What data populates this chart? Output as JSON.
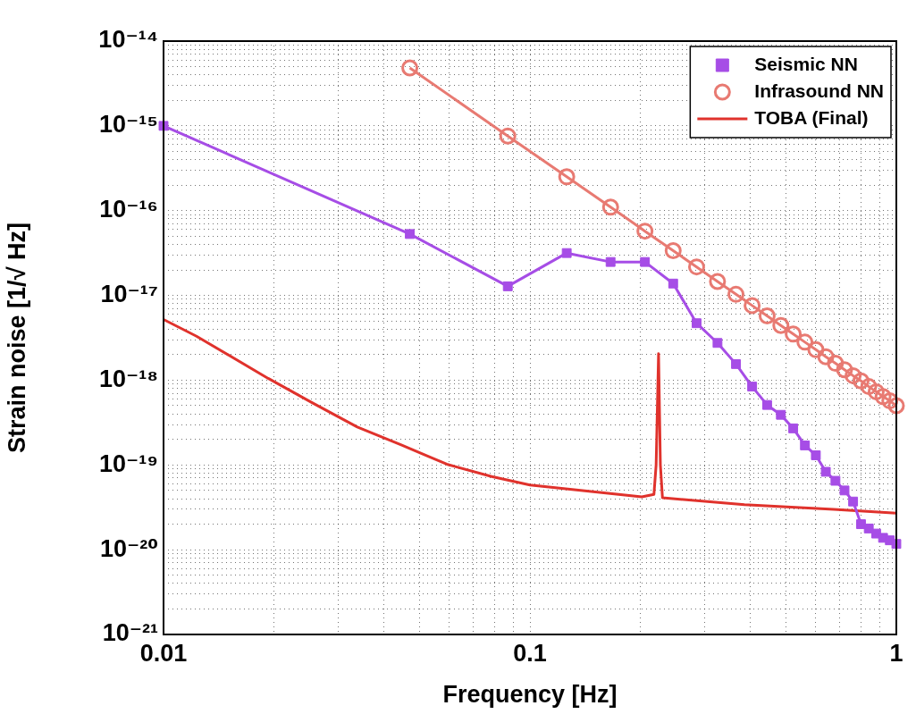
{
  "chart_data": {
    "type": "line",
    "xlabel": "Frequency [Hz]",
    "ylabel": "Strain noise [1/√ Hz]",
    "log": "xy",
    "grid": true,
    "legend": "top right",
    "xlim": [
      0.01,
      1
    ],
    "ylim": [
      1e-21,
      1e-14
    ],
    "xticks": [
      0.01,
      {
        "value": 0.02,
        "label": null
      },
      {
        "value": 0.03,
        "label": null
      },
      {
        "value": 0.04,
        "label": null
      },
      {
        "value": 0.05,
        "label": null
      },
      {
        "value": 0.06,
        "label": null
      },
      {
        "value": 0.07,
        "label": null
      },
      {
        "value": 0.08,
        "label": null
      },
      {
        "value": 0.09,
        "label": null
      },
      0.1,
      {
        "value": 0.2,
        "label": null
      },
      {
        "value": 0.3,
        "label": null
      },
      {
        "value": 0.4,
        "label": null
      },
      {
        "value": 0.5,
        "label": null
      },
      {
        "value": 0.6,
        "label": null
      },
      {
        "value": 0.7,
        "label": null
      },
      {
        "value": 0.8,
        "label": null
      },
      {
        "value": 0.9,
        "label": null
      },
      1
    ],
    "yticks": [
      {
        "value": 1e-21,
        "label": "10⁻²¹"
      },
      {
        "value": 2e-21,
        "label": null
      },
      {
        "value": 3e-21,
        "label": null
      },
      {
        "value": 4e-21,
        "label": null
      },
      {
        "value": 5e-21,
        "label": null
      },
      {
        "value": 6e-21,
        "label": null
      },
      {
        "value": 7e-21,
        "label": null
      },
      {
        "value": 8e-21,
        "label": null
      },
      {
        "value": 9e-21,
        "label": null
      },
      {
        "value": 1e-20,
        "label": "10⁻²⁰"
      },
      {
        "value": 2e-20,
        "label": null
      },
      {
        "value": 3e-20,
        "label": null
      },
      {
        "value": 4e-20,
        "label": null
      },
      {
        "value": 5e-20,
        "label": null
      },
      {
        "value": 6e-20,
        "label": null
      },
      {
        "value": 7e-20,
        "label": null
      },
      {
        "value": 8e-20,
        "label": null
      },
      {
        "value": 9e-20,
        "label": null
      },
      {
        "value": 1e-19,
        "label": "10⁻¹⁹"
      },
      {
        "value": 2e-19,
        "label": null
      },
      {
        "value": 3e-19,
        "label": null
      },
      {
        "value": 4e-19,
        "label": null
      },
      {
        "value": 5e-19,
        "label": null
      },
      {
        "value": 6e-19,
        "label": null
      },
      {
        "value": 7e-19,
        "label": null
      },
      {
        "value": 8e-19,
        "label": null
      },
      {
        "value": 9e-19,
        "label": null
      },
      {
        "value": 1e-18,
        "label": "10⁻¹⁸"
      },
      {
        "value": 2e-18,
        "label": null
      },
      {
        "value": 3e-18,
        "label": null
      },
      {
        "value": 4e-18,
        "label": null
      },
      {
        "value": 5e-18,
        "label": null
      },
      {
        "value": 6e-18,
        "label": null
      },
      {
        "value": 7e-18,
        "label": null
      },
      {
        "value": 8e-18,
        "label": null
      },
      {
        "value": 9e-18,
        "label": null
      },
      {
        "value": 1e-17,
        "label": "10⁻¹⁷"
      },
      {
        "value": 2e-17,
        "label": null
      },
      {
        "value": 3e-17,
        "label": null
      },
      {
        "value": 4e-17,
        "label": null
      },
      {
        "value": 5e-17,
        "label": null
      },
      {
        "value": 6e-17,
        "label": null
      },
      {
        "value": 7e-17,
        "label": null
      },
      {
        "value": 8e-17,
        "label": null
      },
      {
        "value": 9e-17,
        "label": null
      },
      {
        "value": 1e-16,
        "label": "10⁻¹⁶"
      },
      {
        "value": 2e-16,
        "label": null
      },
      {
        "value": 3e-16,
        "label": null
      },
      {
        "value": 4e-16,
        "label": null
      },
      {
        "value": 5e-16,
        "label": null
      },
      {
        "value": 6e-16,
        "label": null
      },
      {
        "value": 7e-16,
        "label": null
      },
      {
        "value": 8e-16,
        "label": null
      },
      {
        "value": 9e-16,
        "label": null
      },
      {
        "value": 1e-15,
        "label": "10⁻¹⁵"
      },
      {
        "value": 2e-15,
        "label": null
      },
      {
        "value": 3e-15,
        "label": null
      },
      {
        "value": 4e-15,
        "label": null
      },
      {
        "value": 5e-15,
        "label": null
      },
      {
        "value": 6e-15,
        "label": null
      },
      {
        "value": 7e-15,
        "label": null
      },
      {
        "value": 8e-15,
        "label": null
      },
      {
        "value": 9e-15,
        "label": null
      },
      {
        "value": 1e-14,
        "label": "10⁻¹⁴"
      }
    ],
    "series": [
      {
        "name": "Seismic NN",
        "type": "line",
        "marker": "square",
        "color": "#a64de6",
        "x": [
          0.01,
          0.047,
          0.087,
          0.126,
          0.166,
          0.206,
          0.246,
          0.285,
          0.325,
          0.365,
          0.404,
          0.444,
          0.484,
          0.523,
          0.563,
          0.603,
          0.642,
          0.682,
          0.722,
          0.762,
          0.801,
          0.841,
          0.881,
          0.92,
          0.96,
          1.0
        ],
        "values": [
          1e-15,
          5.3e-17,
          1.28e-17,
          3.16e-17,
          2.48e-17,
          2.48e-17,
          1.38e-17,
          4.7e-18,
          2.75e-18,
          1.55e-18,
          8.4e-19,
          5.1e-19,
          3.9e-19,
          2.7e-19,
          1.7e-19,
          1.3e-19,
          8.3e-20,
          6.5e-20,
          5e-20,
          3.7e-20,
          2e-20,
          1.78e-20,
          1.55e-20,
          1.38e-20,
          1.29e-20,
          1.17e-20
        ]
      },
      {
        "name": "Infrasound NN",
        "type": "line",
        "marker": "circle",
        "color": "#e87a72",
        "x": [
          0.047,
          0.087,
          0.126,
          0.166,
          0.206,
          0.246,
          0.285,
          0.325,
          0.365,
          0.404,
          0.444,
          0.484,
          0.523,
          0.563,
          0.603,
          0.642,
          0.682,
          0.722,
          0.762,
          0.801,
          0.841,
          0.881,
          0.92,
          0.96,
          1.0
        ],
        "values": [
          4.83e-15,
          7.6e-16,
          2.51e-16,
          1.1e-16,
          5.73e-17,
          3.37e-17,
          2.17e-17,
          1.46e-17,
          1.03e-17,
          7.6e-18,
          5.73e-18,
          4.42e-18,
          3.5e-18,
          2.81e-18,
          2.29e-18,
          1.89e-18,
          1.58e-18,
          1.33e-18,
          1.13e-18,
          9.8e-19,
          8.4e-19,
          7.3e-19,
          6.4e-19,
          5.7e-19,
          5e-19
        ]
      },
      {
        "name": "TOBA (Final)",
        "type": "line",
        "marker": "none",
        "color": "#e0322c",
        "x": [
          0.01,
          0.0123,
          0.0193,
          0.0255,
          0.0338,
          0.0447,
          0.0593,
          0.0786,
          0.1,
          0.202,
          0.218,
          0.221,
          0.2244,
          0.227,
          0.23,
          0.385,
          0.675,
          1.0
        ],
        "values": [
          5.2e-18,
          3.3e-18,
          1.05e-18,
          5.4e-19,
          2.8e-19,
          1.71e-19,
          1.02e-19,
          7.3e-20,
          5.8e-20,
          4.2e-20,
          4.5e-20,
          1e-19,
          2.06e-18,
          1e-19,
          4.1e-20,
          3.4e-20,
          3e-20,
          2.7e-20
        ]
      }
    ]
  }
}
